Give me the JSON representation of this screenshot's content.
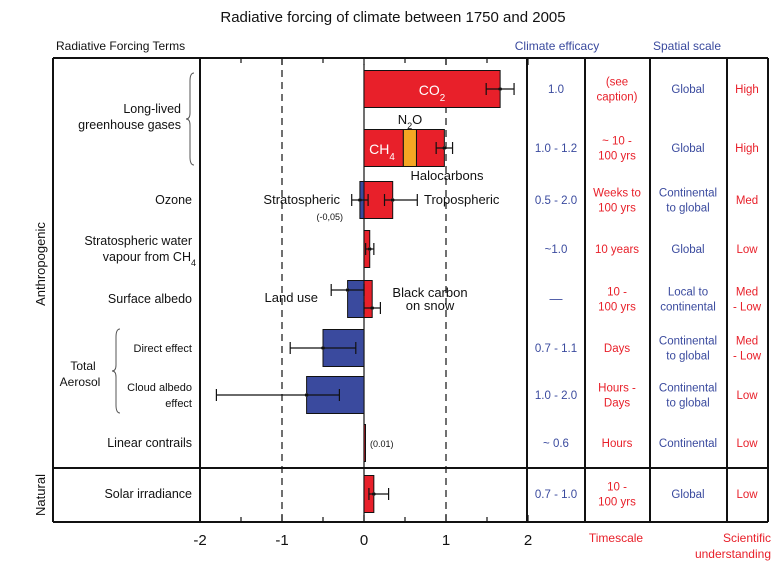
{
  "chart_data": {
    "type": "bar",
    "title": "Radiative forcing of climate between 1750 and 2005",
    "xlabel": "",
    "xlim": [
      -2,
      2
    ],
    "xticks": [
      "-2",
      "-1",
      "0",
      "1",
      "2"
    ],
    "grid": "dashed vertical at -1 and 1",
    "headers": {
      "terms": "Radiative Forcing Terms",
      "efficacy": "Climate efficacy",
      "spatial": "Spatial scale",
      "timescale": "Timescale",
      "understanding_1": "Scientific",
      "understanding_2": "understanding"
    },
    "groups": {
      "anthropogenic": "Anthropogenic",
      "natural": "Natural",
      "aerosol_1": "Total",
      "aerosol_2": "Aerosol"
    },
    "colors": {
      "positive": "#e8202a",
      "negative": "#3a4a9e",
      "n2o": "#f5a623",
      "blue_text": "#3a4a9e",
      "red_text": "#e8202a"
    },
    "rows": [
      {
        "label_lines": [
          "Long-lived",
          "greenhouse gases"
        ],
        "segments": [
          {
            "name": "CO2",
            "from": 0,
            "to": 1.66,
            "color": "positive"
          }
        ],
        "errors": [
          {
            "center": 1.66,
            "low": 1.49,
            "high": 1.83
          }
        ],
        "bar_label": "CO",
        "bar_label_sub": "2",
        "efficacy": [
          "1.0"
        ],
        "timescale": [
          "(see",
          "caption)"
        ],
        "spatial": [
          "Global"
        ],
        "understanding": [
          "High"
        ]
      },
      {
        "label_lines": [],
        "segments": [
          {
            "name": "CH4",
            "from": 0,
            "to": 0.48,
            "color": "positive"
          },
          {
            "name": "N2O",
            "from": 0.48,
            "to": 0.64,
            "color": "n2o"
          },
          {
            "name": "Halocarbons",
            "from": 0.64,
            "to": 0.98,
            "color": "positive"
          }
        ],
        "errors": [
          {
            "center": 0.98,
            "low": 0.88,
            "high": 1.08
          }
        ],
        "bar_label": "CH",
        "bar_label_sub": "4",
        "n2o_label": "N",
        "n2o_sub": "2",
        "n2o_tail": "O",
        "halo_label": "Halocarbons",
        "efficacy": [
          "1.0 - 1.2"
        ],
        "timescale": [
          "~ 10 -",
          "100 yrs"
        ],
        "spatial": [
          "Global"
        ],
        "understanding": [
          "High"
        ]
      },
      {
        "label_lines": [
          "Ozone"
        ],
        "segments": [
          {
            "name": "Stratospheric",
            "from": -0.05,
            "to": 0,
            "color": "negative"
          },
          {
            "name": "Tropospheric",
            "from": 0,
            "to": 0.35,
            "color": "positive"
          }
        ],
        "errors": [
          {
            "center": -0.05,
            "low": -0.15,
            "high": 0.05
          },
          {
            "center": 0.35,
            "low": 0.25,
            "high": 0.65
          }
        ],
        "left_note": "Stratospheric",
        "left_small": "(-0,05)",
        "right_note": "Tropospheric",
        "efficacy": [
          "0.5 - 2.0"
        ],
        "timescale": [
          "Weeks to",
          "100 yrs"
        ],
        "spatial": [
          "Continental",
          "to global"
        ],
        "understanding": [
          "Med"
        ]
      },
      {
        "label_lines": [
          "Stratospheric water",
          "vapour from CH"
        ],
        "label_sub": "4",
        "segments": [
          {
            "name": "Stratospheric water vapour",
            "from": 0,
            "to": 0.07,
            "color": "positive"
          }
        ],
        "errors": [
          {
            "center": 0.07,
            "low": 0.02,
            "high": 0.12
          }
        ],
        "efficacy": [
          "~1.0"
        ],
        "timescale": [
          "10 years"
        ],
        "spatial": [
          "Global"
        ],
        "understanding": [
          "Low"
        ]
      },
      {
        "label_lines": [
          "Surface albedo"
        ],
        "segments": [
          {
            "name": "Land use",
            "from": -0.2,
            "to": 0,
            "color": "negative"
          },
          {
            "name": "Black carbon on snow",
            "from": 0,
            "to": 0.1,
            "color": "positive"
          }
        ],
        "errors": [
          {
            "center": -0.2,
            "low": -0.4,
            "high": 0.0,
            "pos": "upper"
          },
          {
            "center": 0.1,
            "low": 0.0,
            "high": 0.2,
            "pos": "lower"
          }
        ],
        "left_note": "Land use",
        "right_note_lines": [
          "Black carbon",
          "on snow"
        ],
        "efficacy_dash": "—",
        "efficacy": [],
        "timescale": [
          "10 -",
          "100 yrs"
        ],
        "spatial": [
          "Local to",
          "continental"
        ],
        "understanding": [
          "Med",
          "- Low"
        ]
      },
      {
        "label_lines": [
          "Direct effect"
        ],
        "segments": [
          {
            "name": "Aerosol direct effect",
            "from": -0.5,
            "to": 0,
            "color": "negative"
          }
        ],
        "errors": [
          {
            "center": -0.5,
            "low": -0.9,
            "high": -0.1
          }
        ],
        "efficacy": [
          "0.7 - 1.1"
        ],
        "timescale": [
          "Days"
        ],
        "spatial": [
          "Continental",
          "to global"
        ],
        "understanding": [
          "Med",
          "- Low"
        ]
      },
      {
        "label_lines": [
          "Cloud albedo",
          "effect"
        ],
        "segments": [
          {
            "name": "Cloud albedo effect",
            "from": -0.7,
            "to": 0,
            "color": "negative"
          }
        ],
        "errors": [
          {
            "center": -0.7,
            "low": -1.8,
            "high": -0.3
          }
        ],
        "efficacy": [
          "1.0 - 2.0"
        ],
        "timescale": [
          "Hours -",
          "Days"
        ],
        "spatial": [
          "Continental",
          "to global"
        ],
        "understanding": [
          "Low"
        ]
      },
      {
        "label_lines": [
          "Linear  contrails"
        ],
        "segments": [
          {
            "name": "Linear contrails",
            "from": 0,
            "to": 0.01,
            "color": "positive"
          }
        ],
        "errors": [],
        "right_small": "(0.01)",
        "efficacy": [
          "~ 0.6"
        ],
        "timescale": [
          "Hours"
        ],
        "spatial": [
          "Continental"
        ],
        "understanding": [
          "Low"
        ]
      },
      {
        "label_lines": [
          "Solar irradiance"
        ],
        "segments": [
          {
            "name": "Solar irradiance",
            "from": 0,
            "to": 0.12,
            "color": "positive"
          }
        ],
        "errors": [
          {
            "center": 0.12,
            "low": 0.06,
            "high": 0.3
          }
        ],
        "efficacy": [
          "0.7 - 1.0"
        ],
        "timescale": [
          "10 -",
          "100 yrs"
        ],
        "spatial": [
          "Global"
        ],
        "understanding": [
          "Low"
        ]
      }
    ]
  }
}
